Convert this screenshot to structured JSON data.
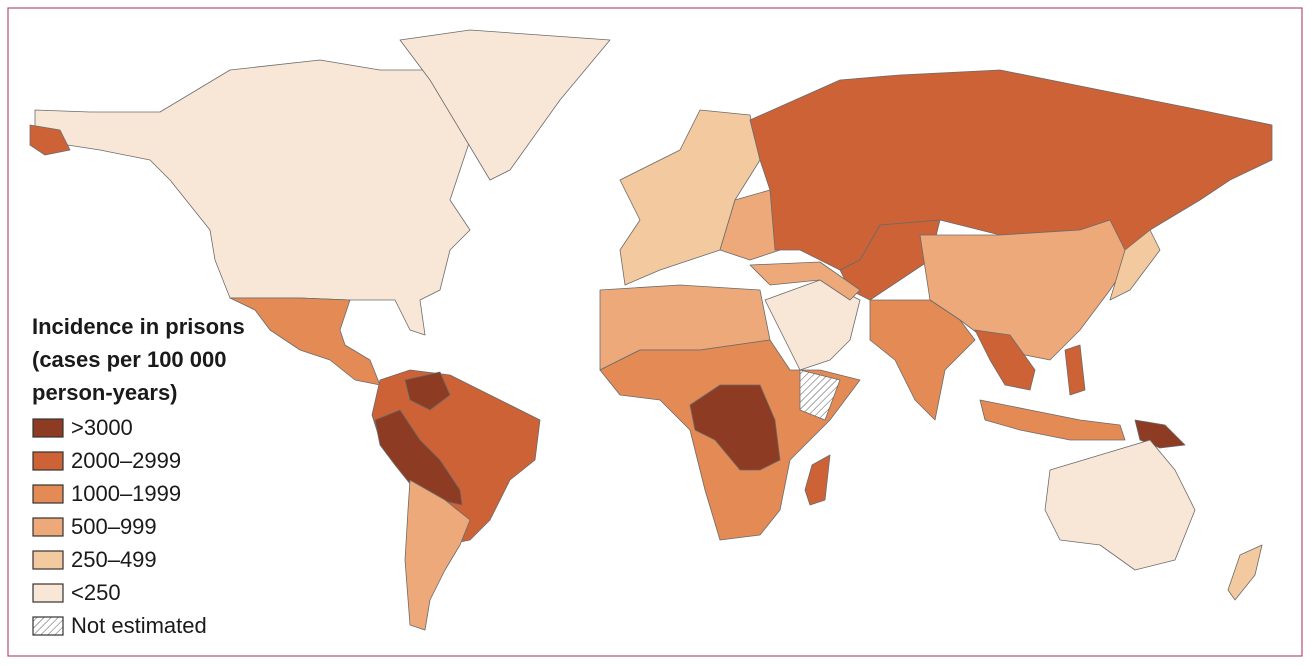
{
  "legend": {
    "title": "Incidence in prisons (cases per 100 000 person-years)",
    "items": [
      {
        "label": ">3000",
        "color": "#8e3b23"
      },
      {
        "label": "2000–2999",
        "color": "#cd6236"
      },
      {
        "label": "1000–1999",
        "color": "#e38a55"
      },
      {
        "label": "500–999",
        "color": "#eda979"
      },
      {
        "label": "250–499",
        "color": "#f3c9a0"
      },
      {
        "label": "<250",
        "color": "#f8e6d6"
      },
      {
        "label": "Not estimated",
        "pattern": "hatch"
      }
    ]
  }
}
